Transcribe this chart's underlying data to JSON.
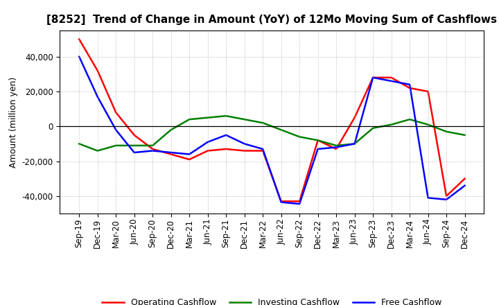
{
  "title": "[8252]  Trend of Change in Amount (YoY) of 12Mo Moving Sum of Cashflows",
  "ylabel": "Amount (million yen)",
  "x_labels": [
    "Sep-19",
    "Dec-19",
    "Mar-20",
    "Jun-20",
    "Sep-20",
    "Dec-20",
    "Mar-21",
    "Jun-21",
    "Sep-21",
    "Dec-21",
    "Mar-22",
    "Jun-22",
    "Sep-22",
    "Dec-22",
    "Mar-23",
    "Jun-23",
    "Sep-23",
    "Dec-23",
    "Mar-24",
    "Jun-24",
    "Sep-24",
    "Dec-24"
  ],
  "operating_cashflow": [
    50000,
    32000,
    8000,
    -5000,
    -13000,
    -16000,
    -19000,
    -14000,
    -13000,
    -14000,
    -14000,
    -43000,
    -43000,
    -8000,
    -13000,
    5000,
    28000,
    28000,
    22000,
    20000,
    -40000,
    -30000
  ],
  "investing_cashflow": [
    -10000,
    -14000,
    -11000,
    -11000,
    -11000,
    -2000,
    4000,
    5000,
    6000,
    4000,
    2000,
    -2000,
    -6000,
    -8000,
    -11000,
    -10000,
    -1000,
    1000,
    4000,
    1000,
    -3000,
    -5000
  ],
  "free_cashflow": [
    40000,
    17000,
    -2000,
    -15000,
    -14000,
    -15000,
    -16000,
    -9000,
    -5000,
    -10000,
    -13000,
    -43500,
    -44500,
    -13000,
    -12000,
    -10000,
    28000,
    26000,
    24000,
    -41000,
    -42000,
    -34000
  ],
  "ylim": [
    -50000,
    55000
  ],
  "yticks": [
    -40000,
    -20000,
    0,
    20000,
    40000
  ],
  "operating_color": "#FF0000",
  "investing_color": "#008000",
  "free_color": "#0000FF",
  "background_color": "#FFFFFF",
  "grid_color": "#aaaaaa",
  "linewidth": 1.8,
  "title_fontsize": 11,
  "axis_fontsize": 8.5,
  "legend_fontsize": 9
}
